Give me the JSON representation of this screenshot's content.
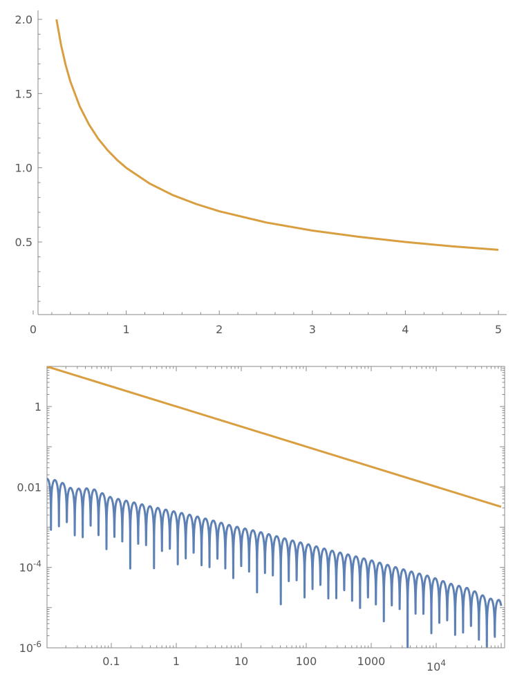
{
  "chart_data": [
    {
      "type": "line",
      "title": "",
      "xlabel": "",
      "ylabel": "",
      "xlim": [
        0,
        5.1
      ],
      "ylim": [
        0.02,
        2.0
      ],
      "x_ticks": [
        0,
        1,
        2,
        3,
        4,
        5
      ],
      "x_tick_labels": [
        "0",
        "1",
        "2",
        "3",
        "4",
        "5"
      ],
      "y_ticks": [
        0.5,
        1.0,
        1.5,
        2.0
      ],
      "y_tick_labels": [
        "0.5",
        "1.0",
        "1.5",
        "2.0"
      ],
      "series": [
        {
          "color": "#D99E3F",
          "x": [
            0.25,
            0.3,
            0.35,
            0.4,
            0.5,
            0.6,
            0.7,
            0.8,
            0.9,
            1.0,
            1.25,
            1.5,
            1.75,
            2.0,
            2.5,
            3.0,
            3.5,
            4.0,
            4.5,
            5.0
          ],
          "y": [
            2.0,
            1.826,
            1.69,
            1.581,
            1.414,
            1.291,
            1.195,
            1.118,
            1.054,
            1.0,
            0.894,
            0.816,
            0.756,
            0.707,
            0.632,
            0.577,
            0.535,
            0.5,
            0.471,
            0.447
          ]
        }
      ],
      "grid": false
    },
    {
      "type": "line",
      "title": "",
      "xlabel": "",
      "ylabel": "",
      "x_scale": "log",
      "y_scale": "log",
      "xlim": [
        0.01,
        100000
      ],
      "ylim": [
        1e-06,
        10
      ],
      "x_ticks": [
        0.1,
        1,
        10,
        100,
        1000,
        10000
      ],
      "x_tick_labels": [
        "0.1",
        "1",
        "10",
        "100",
        "1000",
        "10^4"
      ],
      "y_ticks": [
        1,
        0.01,
        0.0001,
        1e-06
      ],
      "y_tick_labels": [
        "1",
        "0.01",
        "10^-4",
        "10^-6"
      ],
      "series": [
        {
          "color": "#D99E3F",
          "x": [
            0.01,
            100000
          ],
          "y": [
            10,
            0.0032
          ]
        },
        {
          "color": "#5E81B5",
          "x": [
            0.01,
            100000
          ],
          "y": [
            0.016,
            3e-06
          ],
          "envelope_peaks": [
            [
              0.011,
              0.016
            ],
            [
              0.016,
              0.014
            ],
            [
              0.025,
              0.009
            ],
            [
              0.05,
              0.0093
            ],
            [
              0.1,
              0.0055
            ],
            [
              0.2,
              0.0043
            ],
            [
              0.4,
              0.0033
            ],
            [
              0.8,
              0.0026
            ],
            [
              1.7,
              0.002
            ],
            [
              3.5,
              0.0015
            ],
            [
              7,
              0.0011
            ],
            [
              15,
              0.00084
            ],
            [
              30,
              0.00064
            ],
            [
              60,
              0.00047
            ],
            [
              120,
              0.00036
            ],
            [
              250,
              0.00026
            ],
            [
              500,
              0.0002
            ],
            [
              1000,
              0.00015
            ],
            [
              2000,
              0.00011
            ],
            [
              4000,
              8e-05
            ],
            [
              8000,
              6e-05
            ],
            [
              16000,
              4e-05
            ],
            [
              32000,
              3e-05
            ],
            [
              64000,
              1.7e-05
            ]
          ],
          "zero_dips": [
            0.015,
            0.02,
            0.07,
            0.3,
            0.8,
            1.3,
            4.2,
            15,
            60,
            250,
            3500,
            9000,
            60000,
            95000
          ]
        }
      ],
      "grid": false
    }
  ]
}
